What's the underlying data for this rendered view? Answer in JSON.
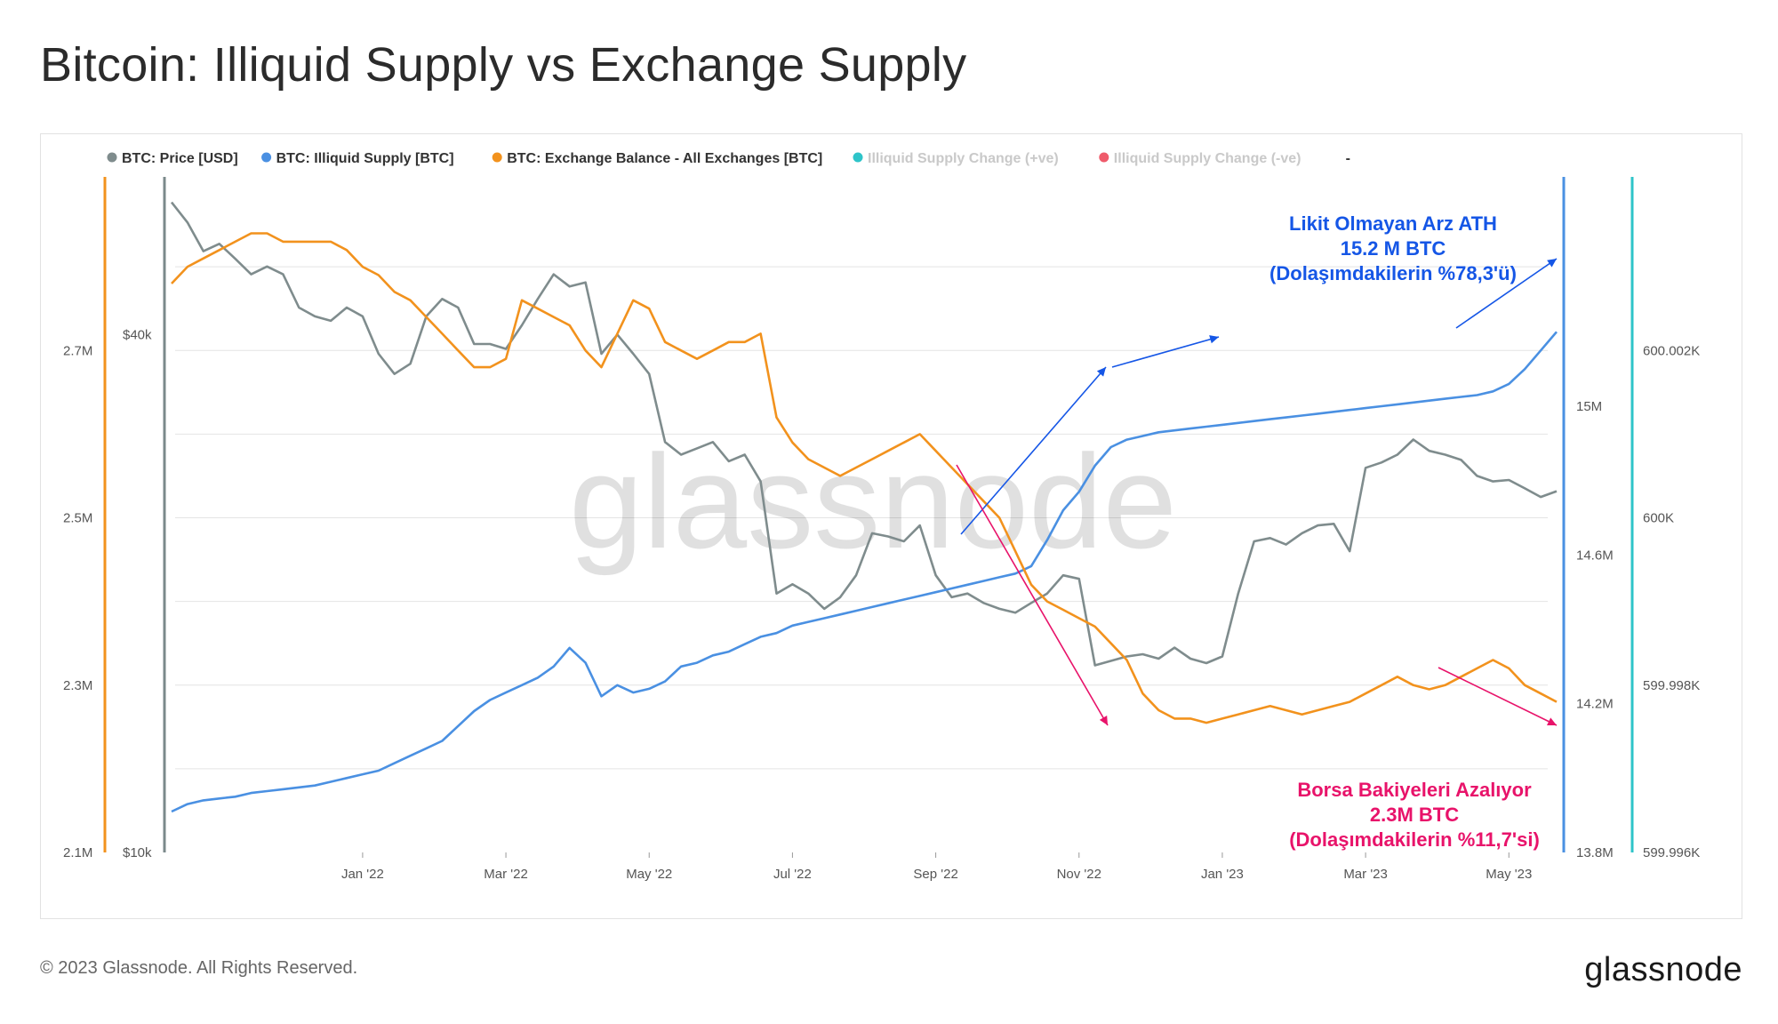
{
  "title": "Bitcoin: Illiquid Supply vs Exchange Supply",
  "footer": {
    "copyright": "© 2023 Glassnode. All Rights Reserved.",
    "brand": "glassnode"
  },
  "watermark": "glassnode",
  "colors": {
    "price": "#7f8c8d",
    "illiquid": "#4a90e2",
    "exchange": "#f2921d",
    "change_pos": "#2ec4c9",
    "change_neg": "#ef5b6b",
    "anno_blue": "#1556e6",
    "anno_pink": "#e8136a"
  },
  "chart_data": {
    "type": "line",
    "title": "Bitcoin: Illiquid Supply vs Exchange Supply",
    "legend": [
      {
        "name": "BTC: Price [USD]",
        "color": "#7f8c8d",
        "muted": false
      },
      {
        "name": "BTC: Illiquid Supply [BTC]",
        "color": "#4a90e2",
        "muted": false
      },
      {
        "name": "BTC: Exchange Balance - All Exchanges [BTC]",
        "color": "#f2921d",
        "muted": false
      },
      {
        "name": "Illiquid Supply Change (+ve)",
        "color": "#2ec4c9",
        "muted": true
      },
      {
        "name": "Illiquid Supply Change (-ve)",
        "color": "#ef5b6b",
        "muted": true
      },
      {
        "name": "-",
        "color": "",
        "muted": false
      }
    ],
    "x_ticks": [
      "Jan '22",
      "Mar '22",
      "May '22",
      "Jul '22",
      "Sep '22",
      "Nov '22",
      "Jan '23",
      "Mar '23",
      "May '23"
    ],
    "x_tick_index": [
      12,
      21,
      30,
      39,
      48,
      57,
      66,
      75,
      84
    ],
    "n_points": 88,
    "axes": {
      "exchange": {
        "ticks": [
          "2.1M",
          "2.3M",
          "2.5M",
          "2.7M"
        ],
        "values": [
          2100000,
          2300000,
          2500000,
          2700000
        ],
        "range": [
          2100000,
          2900000
        ],
        "scale": "linear"
      },
      "price": {
        "ticks": [
          "$10k",
          "$40k"
        ],
        "values": [
          10000,
          40000
        ],
        "range": [
          10000,
          60000
        ],
        "scale": "log"
      },
      "illiquid": {
        "ticks": [
          "13.8M",
          "14.2M",
          "14.6M",
          "15M"
        ],
        "values": [
          13800000,
          14200000,
          14600000,
          15000000
        ],
        "range": [
          13800000,
          15600000
        ],
        "scale": "linear"
      },
      "change": {
        "ticks": [
          "599.996K",
          "599.998K",
          "600K",
          "600.002K"
        ],
        "values": [
          599996,
          599998,
          600000,
          600002
        ],
        "range": [
          599996,
          600004
        ],
        "scale": "linear"
      }
    },
    "series": [
      {
        "name": "BTC: Price [USD]",
        "axis": "price",
        "values": [
          57000,
          54000,
          50000,
          51000,
          49000,
          47000,
          48000,
          47000,
          43000,
          42000,
          41500,
          43000,
          42000,
          38000,
          36000,
          37000,
          42000,
          44000,
          43000,
          39000,
          39000,
          38500,
          41000,
          44000,
          47000,
          45500,
          46000,
          38000,
          40000,
          38000,
          36000,
          30000,
          29000,
          29500,
          30000,
          28500,
          29000,
          27000,
          20000,
          20500,
          20000,
          19200,
          19800,
          21000,
          23500,
          23300,
          23000,
          24000,
          21000,
          19800,
          20000,
          19500,
          19200,
          19000,
          19500,
          20000,
          21000,
          20800,
          16500,
          16700,
          16900,
          17000,
          16800,
          17300,
          16800,
          16600,
          16900,
          20000,
          23000,
          23200,
          22800,
          23500,
          24000,
          24100,
          22400,
          28000,
          28400,
          29000,
          30200,
          29300,
          29000,
          28600,
          27400,
          27000,
          27100,
          26500,
          25900,
          26300
        ]
      },
      {
        "name": "BTC: Illiquid Supply [BTC]",
        "axis": "illiquid",
        "values": [
          13910000,
          13930000,
          13940000,
          13945000,
          13950000,
          13960000,
          13965000,
          13970000,
          13975000,
          13980000,
          13990000,
          14000000,
          14010000,
          14020000,
          14040000,
          14060000,
          14080000,
          14100000,
          14140000,
          14180000,
          14210000,
          14230000,
          14250000,
          14270000,
          14300000,
          14350000,
          14310000,
          14220000,
          14250000,
          14230000,
          14240000,
          14260000,
          14300000,
          14310000,
          14330000,
          14340000,
          14360000,
          14380000,
          14390000,
          14410000,
          14420000,
          14430000,
          14440000,
          14450000,
          14460000,
          14470000,
          14480000,
          14490000,
          14500000,
          14510000,
          14520000,
          14530000,
          14540000,
          14550000,
          14570000,
          14640000,
          14720000,
          14770000,
          14840000,
          14890000,
          14910000,
          14920000,
          14930000,
          14935000,
          14940000,
          14945000,
          14950000,
          14955000,
          14960000,
          14965000,
          14970000,
          14975000,
          14980000,
          14985000,
          14990000,
          14995000,
          15000000,
          15005000,
          15010000,
          15015000,
          15020000,
          15025000,
          15030000,
          15040000,
          15060000,
          15100000,
          15150000,
          15200000
        ]
      },
      {
        "name": "BTC: Exchange Balance - All Exchanges [BTC]",
        "axis": "exchange",
        "values": [
          2780000,
          2800000,
          2810000,
          2820000,
          2830000,
          2840000,
          2840000,
          2830000,
          2830000,
          2830000,
          2830000,
          2820000,
          2800000,
          2790000,
          2770000,
          2760000,
          2740000,
          2720000,
          2700000,
          2680000,
          2680000,
          2690000,
          2760000,
          2750000,
          2740000,
          2730000,
          2700000,
          2680000,
          2720000,
          2760000,
          2750000,
          2710000,
          2700000,
          2690000,
          2700000,
          2710000,
          2710000,
          2720000,
          2620000,
          2590000,
          2570000,
          2560000,
          2550000,
          2560000,
          2570000,
          2580000,
          2590000,
          2600000,
          2580000,
          2560000,
          2540000,
          2520000,
          2500000,
          2460000,
          2420000,
          2400000,
          2390000,
          2380000,
          2370000,
          2350000,
          2330000,
          2290000,
          2270000,
          2260000,
          2260000,
          2255000,
          2260000,
          2265000,
          2270000,
          2275000,
          2270000,
          2265000,
          2270000,
          2275000,
          2280000,
          2290000,
          2300000,
          2310000,
          2300000,
          2295000,
          2300000,
          2310000,
          2320000,
          2330000,
          2320000,
          2300000,
          2290000,
          2280000
        ]
      }
    ],
    "annotations": {
      "top_right": [
        "Likit Olmayan Arz ATH",
        "15.2 M BTC",
        "(Dolaşımdakilerin %78,3'ü)"
      ],
      "bottom_right": [
        "Borsa Bakiyeleri Azalıyor",
        "2.3M BTC",
        "(Dolaşımdakilerin %11,7'si)"
      ]
    },
    "grid": true,
    "legend_position": "top-left"
  }
}
